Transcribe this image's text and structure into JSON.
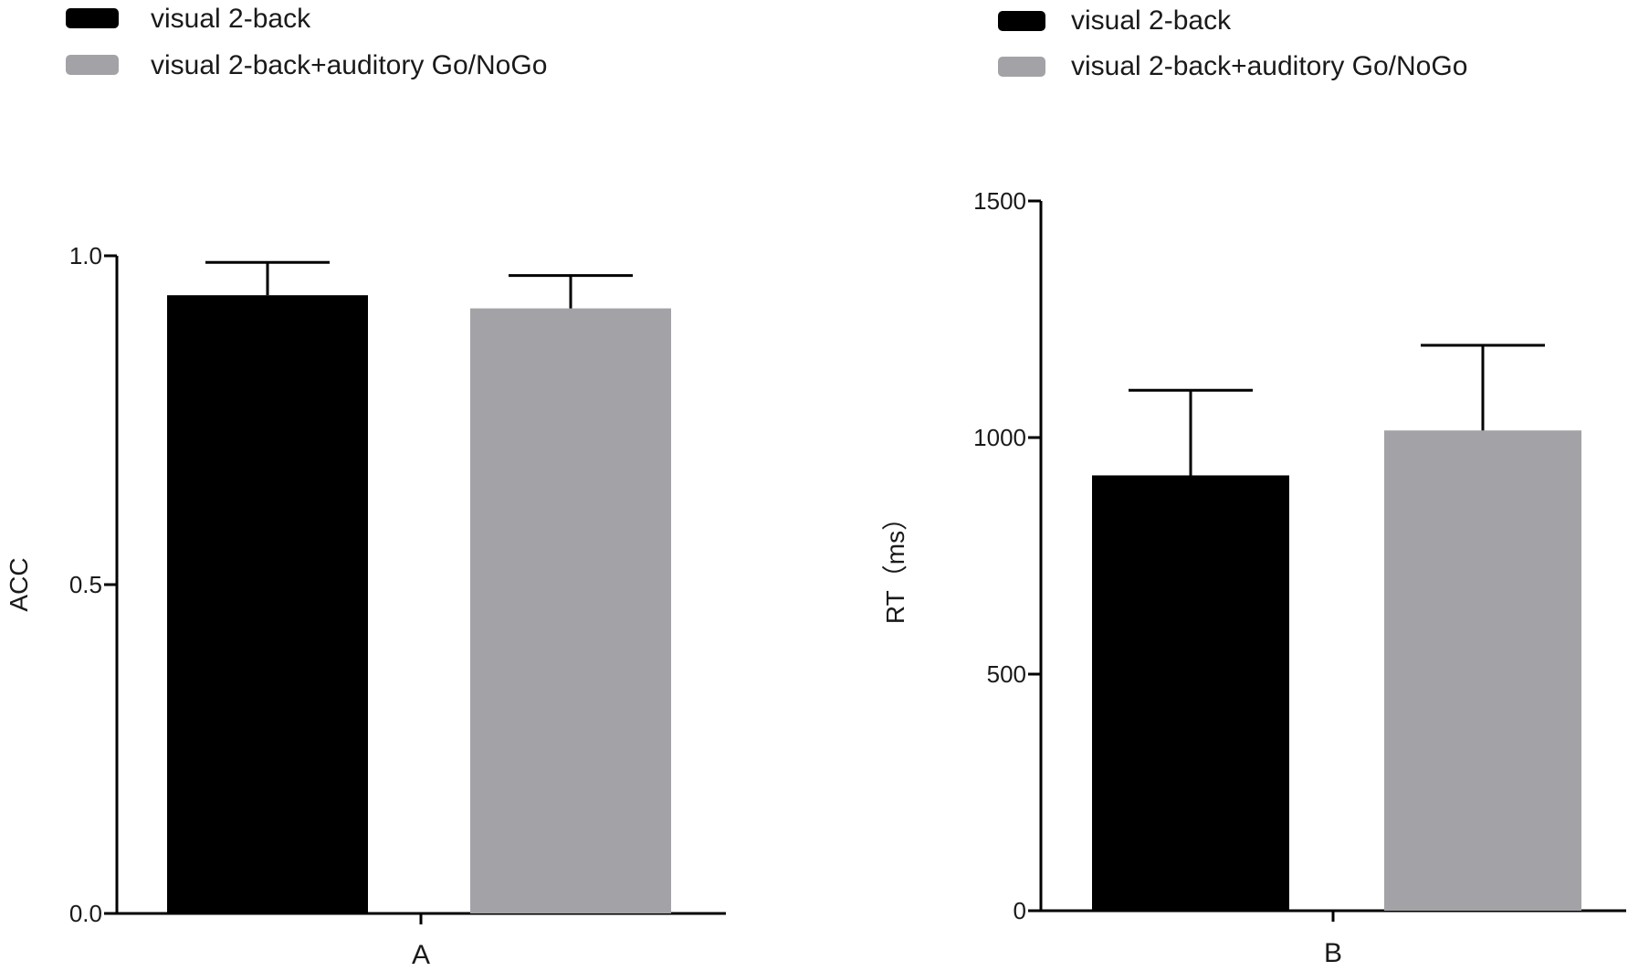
{
  "chart_data": [
    {
      "type": "bar",
      "xlabel": "A",
      "ylabel": "ACC",
      "ylim": [
        0,
        1.0
      ],
      "yticks": [
        "0.0",
        "0.5",
        "1.0"
      ],
      "legend": {
        "placement": "top-left"
      },
      "series": [
        {
          "name": "visual 2-back",
          "value": 0.94,
          "error": 0.05,
          "color": "#000000"
        },
        {
          "name": "visual 2-back+auditory Go/NoGo",
          "value": 0.92,
          "error": 0.05,
          "color": "#a3a3a7"
        }
      ]
    },
    {
      "type": "bar",
      "xlabel": "B",
      "ylabel": "RT（ms）",
      "ylim": [
        0,
        1500
      ],
      "yticks": [
        "0",
        "500",
        "1000",
        "1500"
      ],
      "legend": {
        "placement": "top-left"
      },
      "series": [
        {
          "name": "visual 2-back",
          "value": 920,
          "error": 180,
          "color": "#000000"
        },
        {
          "name": "visual 2-back+auditory Go/NoGo",
          "value": 1015,
          "error": 180,
          "color": "#a3a3a7"
        }
      ]
    }
  ]
}
